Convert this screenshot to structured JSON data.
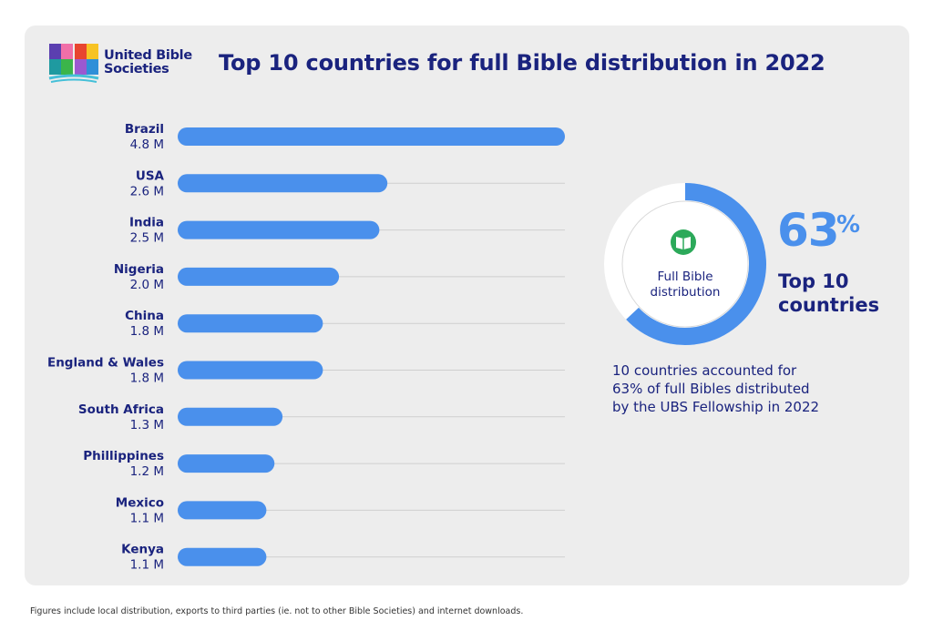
{
  "logo": {
    "text_line1": "United Bible",
    "text_line2": "Societies"
  },
  "title": "Top 10 countries for full Bible distribution in 2022",
  "chart_data": {
    "type": "bar",
    "orientation": "horizontal",
    "categories": [
      "Brazil",
      "USA",
      "India",
      "Nigeria",
      "China",
      "England & Wales",
      "South Africa",
      "Phillippines",
      "Mexico",
      "Kenya"
    ],
    "values": [
      4.8,
      2.6,
      2.5,
      2.0,
      1.8,
      1.8,
      1.3,
      1.2,
      1.1,
      1.1
    ],
    "value_labels": [
      "4.8 M",
      "2.6 M",
      "2.5 M",
      "2.0 M",
      "1.8 M",
      "1.8 M",
      "1.3 M",
      "1.2 M",
      "1.1 M",
      "1.1 M"
    ],
    "unit": "M",
    "xlim": [
      0,
      4.8
    ],
    "bar_color": "#4a90ec",
    "grid": true
  },
  "donut": {
    "value": 63,
    "label_line1": "Full Bible",
    "label_line2": "distribution",
    "icon": "book-icon",
    "icon_color": "#2ca95a",
    "arc_color": "#4a90ec"
  },
  "highlight": {
    "number": "63",
    "percent_sign": "%",
    "line1": "Top 10",
    "line2": "countries"
  },
  "caption": {
    "line1": "10 countries accounted for",
    "line2": "63% of full Bibles distributed",
    "line3": "by the UBS Fellowship in 2022"
  },
  "footnote": "Figures include local distribution, exports to third parties (ie. not to other Bible Societies) and internet downloads."
}
